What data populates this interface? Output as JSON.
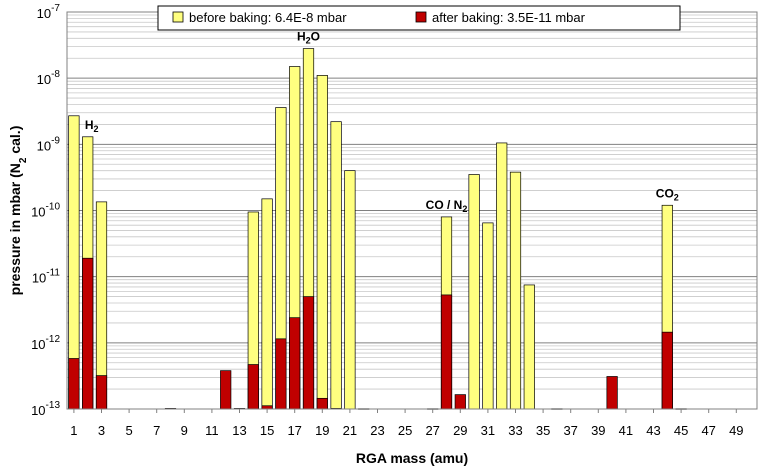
{
  "chart_data": {
    "type": "bar",
    "xlabel": "RGA mass (amu)",
    "ylabel": "pressure in mbar (N",
    "ylabel_sub": "2",
    "ylabel_tail": " cal.)",
    "yscale": "log",
    "ylim": [
      1e-13,
      1e-07
    ],
    "xlim": [
      0.5,
      50.5
    ],
    "grid": true,
    "legend_position": "top-center",
    "colors": {
      "before": "#ffff80",
      "after": "#c00000",
      "outline": "#000000",
      "major_grid": "#808080",
      "minor_grid": "#c8c8c8"
    },
    "x_ticks": [
      1,
      3,
      5,
      7,
      9,
      11,
      13,
      15,
      17,
      19,
      21,
      23,
      25,
      27,
      29,
      31,
      33,
      35,
      37,
      39,
      41,
      43,
      45,
      47,
      49
    ],
    "y_ticks": [
      {
        "exp": -13,
        "base": "10",
        "sup": "-13"
      },
      {
        "exp": -12,
        "base": "10",
        "sup": "-12"
      },
      {
        "exp": -11,
        "base": "10",
        "sup": "-11"
      },
      {
        "exp": -10,
        "base": "10",
        "sup": "-10"
      },
      {
        "exp": -9,
        "base": "10",
        "sup": "-9"
      },
      {
        "exp": -8,
        "base": "10",
        "sup": "-8"
      },
      {
        "exp": -7,
        "base": "10",
        "sup": "-7"
      }
    ],
    "series": [
      {
        "name": "before baking: 6.4E-8 mbar",
        "key": "before",
        "values": {
          "1": 2.7e-09,
          "2": 1.3e-09,
          "3": 1.35e-10,
          "14": 9.5e-11,
          "15": 1.5e-10,
          "16": 3.6e-09,
          "17": 1.5e-08,
          "18": 2.8e-08,
          "19": 1.1e-08,
          "20": 2.2e-09,
          "21": 4e-10,
          "28": 8e-11,
          "30": 3.5e-10,
          "31": 6.5e-11,
          "32": 1.05e-09,
          "33": 3.8e-10,
          "34": 7.5e-12,
          "44": 1.2e-10
        }
      },
      {
        "name": "after baking: 3.5E-11 mbar",
        "key": "after",
        "values": {
          "1": 5.8e-13,
          "2": 1.9e-11,
          "3": 3.2e-13,
          "8": 1.02e-13,
          "12": 3.8e-13,
          "13": 1.02e-13,
          "14": 4.7e-13,
          "15": 1.12e-13,
          "16": 1.15e-12,
          "17": 2.4e-12,
          "18": 5e-12,
          "19": 1.45e-13,
          "20": 1.02e-13,
          "22": 1.01e-13,
          "27": 1.01e-13,
          "28": 5.3e-12,
          "29": 1.65e-13,
          "36": 1.01e-13,
          "40": 3.1e-13,
          "44": 1.45e-12,
          "45": 1.01e-13
        }
      }
    ],
    "annotations": [
      {
        "id": "h2",
        "x": 2,
        "above": 1.3e-09,
        "parts": [
          [
            "H",
            false
          ],
          [
            "2",
            true
          ]
        ]
      },
      {
        "id": "h2o",
        "x": 18,
        "above": 2.8e-08,
        "parts": [
          [
            "H",
            false
          ],
          [
            "2",
            true
          ],
          [
            "O",
            false
          ]
        ]
      },
      {
        "id": "co-n2",
        "x": 28,
        "above": 8e-11,
        "parts": [
          [
            "CO / N",
            false
          ],
          [
            "2",
            true
          ]
        ]
      },
      {
        "id": "co2",
        "x": 44,
        "above": 1.2e-10,
        "parts": [
          [
            "CO",
            false
          ],
          [
            "2",
            true
          ]
        ]
      }
    ]
  }
}
